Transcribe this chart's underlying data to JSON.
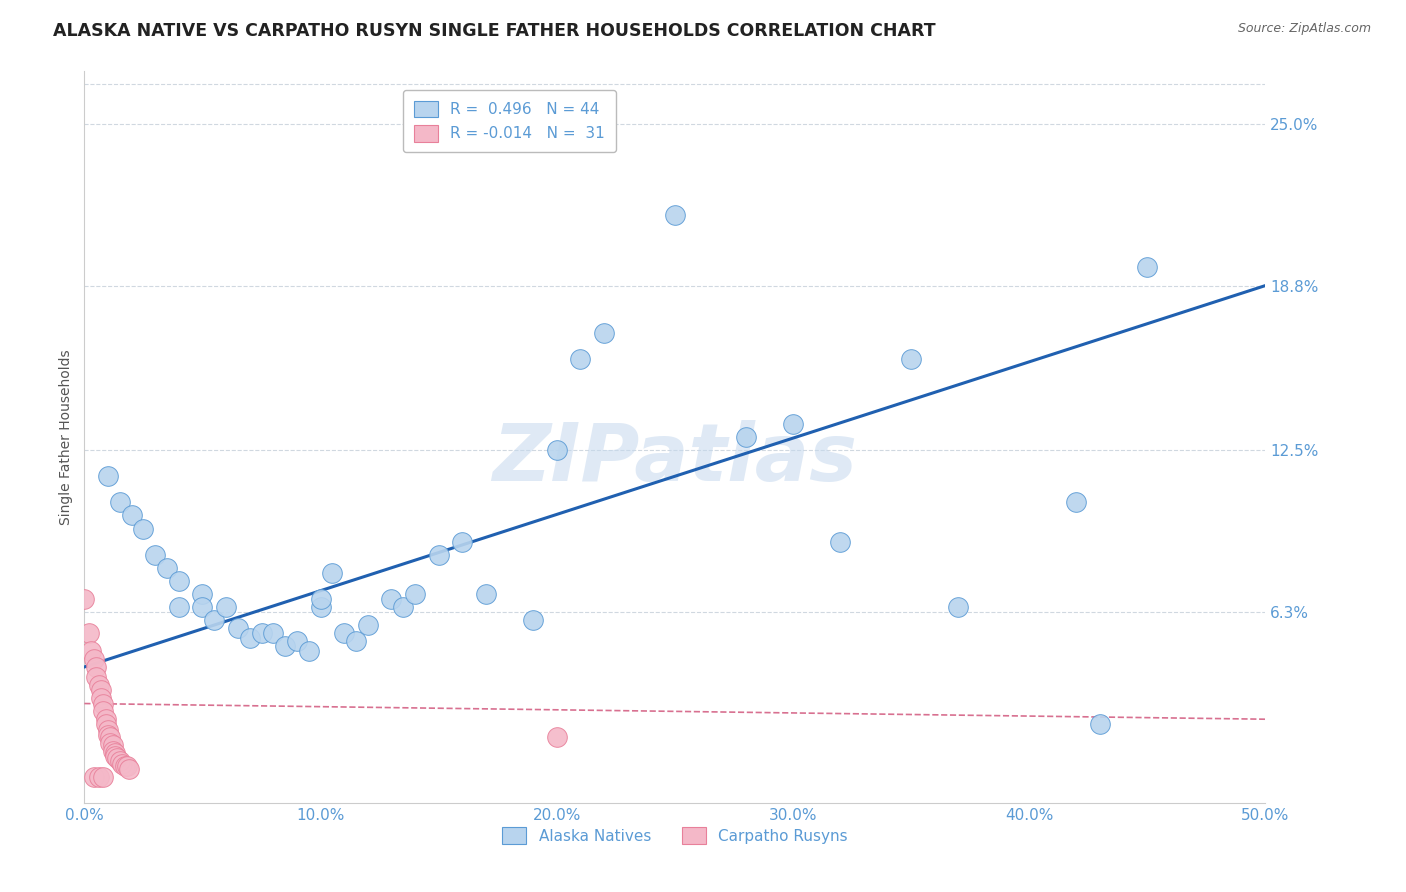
{
  "title": "ALASKA NATIVE VS CARPATHO RUSYN SINGLE FATHER HOUSEHOLDS CORRELATION CHART",
  "source": "Source: ZipAtlas.com",
  "ylabel_label": "Single Father Households",
  "watermark": "ZIPatlas",
  "blue_dots": [
    [
      0.01,
      0.115
    ],
    [
      0.015,
      0.105
    ],
    [
      0.02,
      0.1
    ],
    [
      0.025,
      0.095
    ],
    [
      0.03,
      0.085
    ],
    [
      0.035,
      0.08
    ],
    [
      0.04,
      0.075
    ],
    [
      0.04,
      0.065
    ],
    [
      0.05,
      0.07
    ],
    [
      0.05,
      0.065
    ],
    [
      0.055,
      0.06
    ],
    [
      0.06,
      0.065
    ],
    [
      0.065,
      0.057
    ],
    [
      0.07,
      0.053
    ],
    [
      0.075,
      0.055
    ],
    [
      0.08,
      0.055
    ],
    [
      0.085,
      0.05
    ],
    [
      0.09,
      0.052
    ],
    [
      0.095,
      0.048
    ],
    [
      0.1,
      0.065
    ],
    [
      0.1,
      0.068
    ],
    [
      0.105,
      0.078
    ],
    [
      0.11,
      0.055
    ],
    [
      0.115,
      0.052
    ],
    [
      0.12,
      0.058
    ],
    [
      0.13,
      0.068
    ],
    [
      0.135,
      0.065
    ],
    [
      0.14,
      0.07
    ],
    [
      0.15,
      0.085
    ],
    [
      0.16,
      0.09
    ],
    [
      0.17,
      0.07
    ],
    [
      0.19,
      0.06
    ],
    [
      0.2,
      0.125
    ],
    [
      0.21,
      0.16
    ],
    [
      0.22,
      0.17
    ],
    [
      0.25,
      0.215
    ],
    [
      0.28,
      0.13
    ],
    [
      0.3,
      0.135
    ],
    [
      0.32,
      0.09
    ],
    [
      0.35,
      0.16
    ],
    [
      0.37,
      0.065
    ],
    [
      0.42,
      0.105
    ],
    [
      0.45,
      0.195
    ],
    [
      0.43,
      0.02
    ]
  ],
  "pink_dots": [
    [
      0.0,
      0.068
    ],
    [
      0.002,
      0.055
    ],
    [
      0.003,
      0.048
    ],
    [
      0.004,
      0.045
    ],
    [
      0.005,
      0.042
    ],
    [
      0.005,
      0.038
    ],
    [
      0.006,
      0.035
    ],
    [
      0.007,
      0.033
    ],
    [
      0.007,
      0.03
    ],
    [
      0.008,
      0.028
    ],
    [
      0.008,
      0.025
    ],
    [
      0.009,
      0.022
    ],
    [
      0.009,
      0.02
    ],
    [
      0.01,
      0.018
    ],
    [
      0.01,
      0.016
    ],
    [
      0.011,
      0.015
    ],
    [
      0.011,
      0.013
    ],
    [
      0.012,
      0.012
    ],
    [
      0.012,
      0.01
    ],
    [
      0.013,
      0.009
    ],
    [
      0.013,
      0.008
    ],
    [
      0.014,
      0.007
    ],
    [
      0.015,
      0.006
    ],
    [
      0.016,
      0.005
    ],
    [
      0.017,
      0.004
    ],
    [
      0.018,
      0.004
    ],
    [
      0.019,
      0.003
    ],
    [
      0.004,
      0.0
    ],
    [
      0.006,
      0.0
    ],
    [
      0.008,
      0.0
    ],
    [
      0.2,
      0.015
    ]
  ],
  "blue_line_x0": 0.0,
  "blue_line_x1": 0.5,
  "blue_line_y0": 0.042,
  "blue_line_y1": 0.188,
  "pink_line_x0": 0.0,
  "pink_line_x1": 0.5,
  "pink_line_y0": 0.028,
  "pink_line_y1": 0.022,
  "xlim": [
    0.0,
    0.5
  ],
  "ylim": [
    -0.01,
    0.27
  ],
  "ytick_vals": [
    0.063,
    0.125,
    0.188,
    0.25
  ],
  "ytick_labels": [
    "6.3%",
    "12.5%",
    "18.8%",
    "25.0%"
  ],
  "xtick_vals": [
    0.0,
    0.1,
    0.2,
    0.3,
    0.4,
    0.5
  ],
  "xtick_labels": [
    "0.0%",
    "10.0%",
    "20.0%",
    "30.0%",
    "40.0%",
    "50.0%"
  ],
  "grid_color": "#d0d8e0",
  "bg_color": "#ffffff",
  "blue_color": "#5b9bd5",
  "pink_color": "#e8809a",
  "blue_dot_fill": "#b8d4ee",
  "pink_dot_fill": "#f4b8c8",
  "line_blue": "#2060b0",
  "line_pink": "#d87090",
  "title_fontsize": 12.5,
  "tick_fontsize": 11,
  "axis_label_fontsize": 10,
  "source_fontsize": 9
}
